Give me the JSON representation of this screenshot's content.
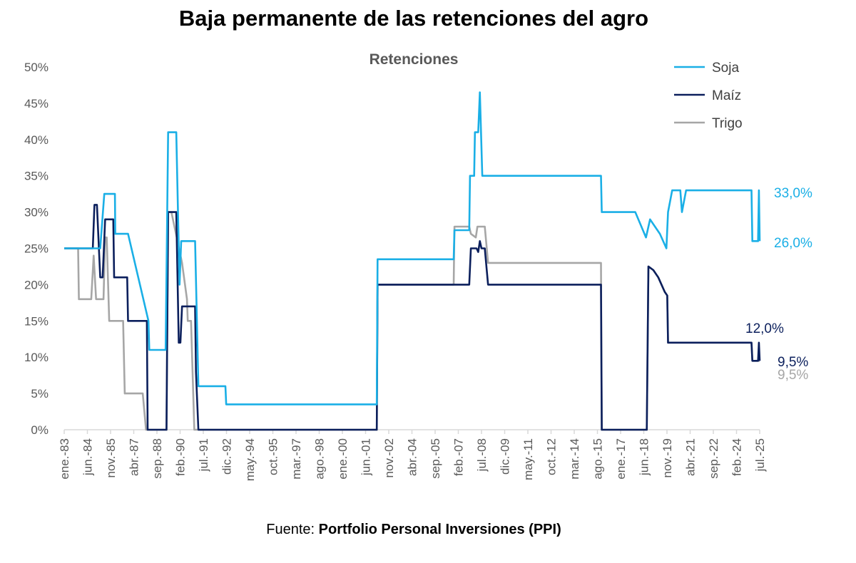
{
  "title": "Baja permanente de las retenciones del agro",
  "source": {
    "prefix": "Fuente:",
    "name": "Portfolio Personal Inversiones (PPI)"
  },
  "chart_data": {
    "type": "line",
    "title": "Retenciones",
    "xlabel": "",
    "ylabel": "",
    "ylim": [
      0,
      50
    ],
    "xlim": [
      1983.0,
      2025.5
    ],
    "y_ticks": [
      "0%",
      "5%",
      "10%",
      "15%",
      "20%",
      "25%",
      "30%",
      "35%",
      "40%",
      "45%",
      "50%"
    ],
    "x_ticks": [
      "ene.-83",
      "jun.-84",
      "nov.-85",
      "abr.-87",
      "sep.-88",
      "feb.-90",
      "jul.-91",
      "dic.-92",
      "may.-94",
      "oct.-95",
      "mar.-97",
      "ago.-98",
      "ene.-00",
      "jun.-01",
      "nov.-02",
      "abr.-04",
      "sep.-05",
      "feb.-07",
      "jul.-08",
      "dic.-09",
      "may.-11",
      "oct.-12",
      "mar.-14",
      "ago.-15",
      "ene.-17",
      "jun.-18",
      "nov.-19",
      "abr.-21",
      "sep.-22",
      "feb.-24",
      "jul.-25"
    ],
    "grid": false,
    "legend": "top-right",
    "series": [
      {
        "name": "Soja",
        "color": "#1AAFE6",
        "points": [
          [
            1983.0,
            25
          ],
          [
            1985.2,
            25
          ],
          [
            1985.45,
            32.5
          ],
          [
            1986.1,
            32.5
          ],
          [
            1986.12,
            27
          ],
          [
            1986.9,
            27
          ],
          [
            1988.15,
            15
          ],
          [
            1988.2,
            11
          ],
          [
            1989.2,
            11
          ],
          [
            1989.35,
            41
          ],
          [
            1989.85,
            41
          ],
          [
            1990.05,
            20
          ],
          [
            1990.15,
            26
          ],
          [
            1991.0,
            26
          ],
          [
            1991.2,
            6
          ],
          [
            1992.85,
            6
          ],
          [
            1992.9,
            3.5
          ],
          [
            2002.1,
            3.5
          ],
          [
            2002.15,
            23.5
          ],
          [
            2006.8,
            23.5
          ],
          [
            2006.85,
            27.5
          ],
          [
            2007.75,
            27.5
          ],
          [
            2007.8,
            35
          ],
          [
            2008.05,
            35
          ],
          [
            2008.1,
            41
          ],
          [
            2008.3,
            41
          ],
          [
            2008.4,
            46.5
          ],
          [
            2008.55,
            35
          ],
          [
            2015.8,
            35
          ],
          [
            2015.85,
            30
          ],
          [
            2017.9,
            30
          ],
          [
            2018.55,
            26.5
          ],
          [
            2018.8,
            29
          ],
          [
            2019.1,
            28
          ],
          [
            2019.4,
            27
          ],
          [
            2019.8,
            25
          ],
          [
            2019.9,
            30
          ],
          [
            2020.15,
            33
          ],
          [
            2020.65,
            33
          ],
          [
            2020.75,
            30
          ],
          [
            2021.0,
            33
          ],
          [
            2025.0,
            33
          ],
          [
            2025.05,
            26
          ],
          [
            2025.4,
            26
          ],
          [
            2025.45,
            33
          ],
          [
            2025.5,
            26
          ]
        ],
        "end_labels": [
          "33,0%",
          "26,0%"
        ]
      },
      {
        "name": "Maíz",
        "color": "#0B1F5C",
        "points": [
          [
            1983.0,
            25
          ],
          [
            1984.75,
            25
          ],
          [
            1984.85,
            31
          ],
          [
            1985.0,
            31
          ],
          [
            1985.2,
            21
          ],
          [
            1985.35,
            21
          ],
          [
            1985.5,
            29
          ],
          [
            1986.0,
            29
          ],
          [
            1986.05,
            21
          ],
          [
            1986.85,
            21
          ],
          [
            1986.9,
            15
          ],
          [
            1988.05,
            15
          ],
          [
            1988.1,
            0
          ],
          [
            1989.25,
            0
          ],
          [
            1989.35,
            30
          ],
          [
            1989.85,
            30
          ],
          [
            1990.0,
            12
          ],
          [
            1990.1,
            12
          ],
          [
            1990.2,
            17
          ],
          [
            1991.0,
            17
          ],
          [
            1991.05,
            8
          ],
          [
            1991.2,
            0
          ],
          [
            2002.1,
            0
          ],
          [
            2002.15,
            20
          ],
          [
            2007.75,
            20
          ],
          [
            2007.85,
            25
          ],
          [
            2008.2,
            25
          ],
          [
            2008.3,
            24.5
          ],
          [
            2008.4,
            26
          ],
          [
            2008.5,
            25
          ],
          [
            2008.7,
            25
          ],
          [
            2008.9,
            20
          ],
          [
            2015.8,
            20
          ],
          [
            2015.85,
            0
          ],
          [
            2018.6,
            0
          ],
          [
            2018.7,
            22.5
          ],
          [
            2019.0,
            22
          ],
          [
            2019.3,
            21
          ],
          [
            2019.7,
            19
          ],
          [
            2019.85,
            18.5
          ],
          [
            2019.9,
            12
          ],
          [
            2025.0,
            12
          ],
          [
            2025.05,
            9.5
          ],
          [
            2025.4,
            9.5
          ],
          [
            2025.45,
            12
          ],
          [
            2025.5,
            9.5
          ]
        ],
        "end_labels": [
          "12,0%",
          "9,5%"
        ]
      },
      {
        "name": "Trigo",
        "color": "#A6A6A6",
        "points": [
          [
            1983.0,
            25
          ],
          [
            1983.85,
            25
          ],
          [
            1983.9,
            18
          ],
          [
            1984.65,
            18
          ],
          [
            1984.8,
            24
          ],
          [
            1984.95,
            18
          ],
          [
            1985.4,
            18
          ],
          [
            1985.5,
            26.5
          ],
          [
            1985.6,
            26.5
          ],
          [
            1985.75,
            15
          ],
          [
            1986.6,
            15
          ],
          [
            1986.7,
            5
          ],
          [
            1987.8,
            5
          ],
          [
            1988.0,
            0
          ],
          [
            1989.25,
            0
          ],
          [
            1989.35,
            30
          ],
          [
            1989.55,
            30
          ],
          [
            1990.2,
            23
          ],
          [
            1990.5,
            18
          ],
          [
            1990.55,
            15
          ],
          [
            1990.75,
            15
          ],
          [
            1990.95,
            0
          ],
          [
            2002.1,
            0
          ],
          [
            2002.15,
            20
          ],
          [
            2006.8,
            20
          ],
          [
            2006.85,
            28
          ],
          [
            2007.75,
            28
          ],
          [
            2007.85,
            27
          ],
          [
            2008.15,
            26.5
          ],
          [
            2008.25,
            28
          ],
          [
            2008.7,
            28
          ],
          [
            2008.9,
            23
          ],
          [
            2015.8,
            23
          ],
          [
            2015.85,
            0
          ],
          [
            2018.6,
            0
          ],
          [
            2018.7,
            22.5
          ],
          [
            2019.0,
            22
          ],
          [
            2019.3,
            21
          ],
          [
            2019.7,
            19
          ],
          [
            2019.85,
            18.5
          ],
          [
            2019.9,
            12
          ],
          [
            2025.0,
            12
          ],
          [
            2025.05,
            9.5
          ],
          [
            2025.5,
            9.5
          ]
        ],
        "end_labels": [
          "9,5%"
        ]
      }
    ]
  }
}
